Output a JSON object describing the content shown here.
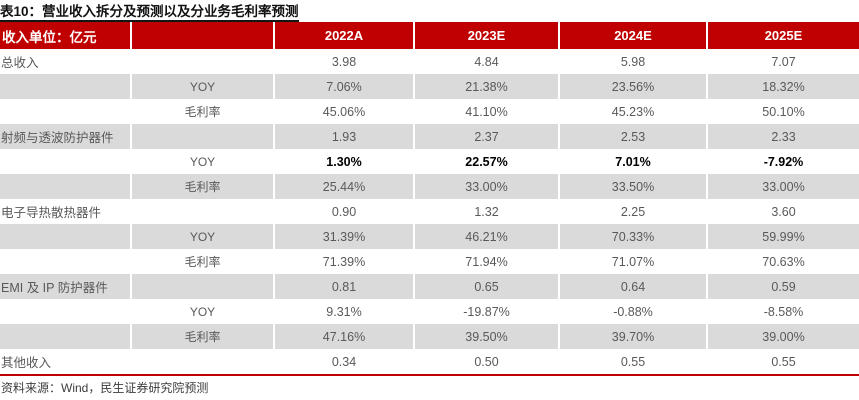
{
  "title": "表10：营业收入拆分及预测以及分业务毛利率预测",
  "colors": {
    "header_red": "#C00000",
    "row_gray": "#DADADA",
    "body_text": "#595959",
    "bold_text": "#000000"
  },
  "table": {
    "unit_header": "收入单位：亿元",
    "columns": [
      "2022A",
      "2023E",
      "2024E",
      "2025E"
    ],
    "rows": [
      {
        "label": "总收入",
        "sub": "",
        "values": [
          "3.98",
          "4.84",
          "5.98",
          "7.07"
        ]
      },
      {
        "label": "",
        "sub": "YOY",
        "values": [
          "7.06%",
          "21.38%",
          "23.56%",
          "18.32%"
        ]
      },
      {
        "label": "",
        "sub": "毛利率",
        "values": [
          "45.06%",
          "41.10%",
          "45.23%",
          "50.10%"
        ]
      },
      {
        "label": "射频与透波防护器件",
        "sub": "",
        "values": [
          "1.93",
          "2.37",
          "2.53",
          "2.33"
        ]
      },
      {
        "label": "",
        "sub": "YOY",
        "values": [
          "1.30%",
          "22.57%",
          "7.01%",
          "-7.92%"
        ]
      },
      {
        "label": "",
        "sub": "毛利率",
        "values": [
          "25.44%",
          "33.00%",
          "33.50%",
          "33.00%"
        ]
      },
      {
        "label": "电子导热散热器件",
        "sub": "",
        "values": [
          "0.90",
          "1.32",
          "2.25",
          "3.60"
        ]
      },
      {
        "label": "",
        "sub": "YOY",
        "values": [
          "31.39%",
          "46.21%",
          "70.33%",
          "59.99%"
        ]
      },
      {
        "label": "",
        "sub": "毛利率",
        "values": [
          "71.39%",
          "71.94%",
          "71.07%",
          "70.63%"
        ]
      },
      {
        "label": "EMI 及 IP 防护器件",
        "sub": "",
        "values": [
          "0.81",
          "0.65",
          "0.64",
          "0.59"
        ]
      },
      {
        "label": "",
        "sub": "YOY",
        "values": [
          "9.31%",
          "-19.87%",
          "-0.88%",
          "-8.58%"
        ]
      },
      {
        "label": "",
        "sub": "毛利率",
        "values": [
          "47.16%",
          "39.50%",
          "39.70%",
          "39.00%"
        ]
      },
      {
        "label": "其他收入",
        "sub": "",
        "values": [
          "0.34",
          "0.50",
          "0.55",
          "0.55"
        ]
      }
    ]
  },
  "footer": {
    "source": "资料来源：Wind，民生证券研究院预测"
  }
}
